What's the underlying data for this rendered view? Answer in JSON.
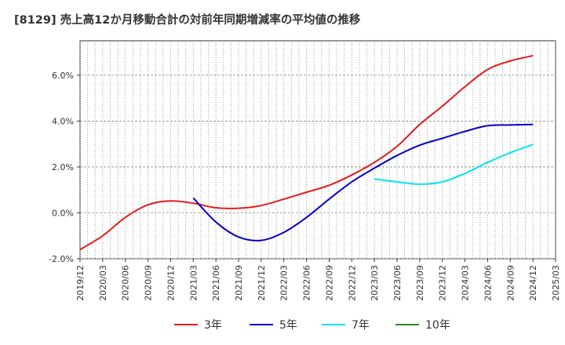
{
  "chart_data": {
    "type": "line",
    "title": "[8129]  売上高12か月移動合計の対前年同期増減率の平均値の推移",
    "xlabel": "",
    "ylabel": "",
    "x_tick_labels": [
      "2019/12",
      "2020/03",
      "2020/06",
      "2020/09",
      "2020/12",
      "2021/03",
      "2021/06",
      "2021/09",
      "2021/12",
      "2022/03",
      "2022/06",
      "2022/09",
      "2022/12",
      "2023/03",
      "2023/06",
      "2023/09",
      "2023/12",
      "2024/03",
      "2024/06",
      "2024/09",
      "2024/12",
      "2025/03"
    ],
    "y_ticks": [
      -2.0,
      0.0,
      2.0,
      4.0,
      6.0
    ],
    "y_tick_labels": [
      "-2.0%",
      "0.0%",
      "2.0%",
      "4.0%",
      "6.0%"
    ],
    "ylim": [
      -2.0,
      7.5
    ],
    "grid": true,
    "legend_position": "bottom",
    "series": [
      {
        "name": "3年",
        "color": "#e41a1c",
        "x": [
          "2019/12",
          "2020/03",
          "2020/06",
          "2020/09",
          "2020/12",
          "2021/03",
          "2021/06",
          "2021/09",
          "2021/12",
          "2022/03",
          "2022/06",
          "2022/09",
          "2022/12",
          "2023/03",
          "2023/06",
          "2023/09",
          "2023/12",
          "2024/03",
          "2024/06",
          "2024/09",
          "2024/12"
        ],
        "values": [
          -1.6,
          -1.0,
          -0.2,
          0.35,
          0.52,
          0.42,
          0.22,
          0.2,
          0.32,
          0.6,
          0.9,
          1.2,
          1.65,
          2.2,
          2.9,
          3.85,
          4.65,
          5.5,
          6.25,
          6.62,
          6.85
        ]
      },
      {
        "name": "5年",
        "color": "#0000cc",
        "x": [
          "2021/03",
          "2021/06",
          "2021/09",
          "2021/12",
          "2022/03",
          "2022/06",
          "2022/09",
          "2022/12",
          "2023/03",
          "2023/06",
          "2023/09",
          "2023/12",
          "2024/03",
          "2024/06",
          "2024/09",
          "2024/12"
        ],
        "values": [
          0.65,
          -0.4,
          -1.05,
          -1.2,
          -0.85,
          -0.2,
          0.6,
          1.35,
          1.95,
          2.5,
          2.95,
          3.25,
          3.55,
          3.8,
          3.83,
          3.85
        ]
      },
      {
        "name": "7年",
        "color": "#00e5ee",
        "x": [
          "2023/03",
          "2023/06",
          "2023/09",
          "2023/12",
          "2024/03",
          "2024/06",
          "2024/09",
          "2024/12"
        ],
        "values": [
          1.48,
          1.35,
          1.25,
          1.35,
          1.72,
          2.2,
          2.62,
          2.98
        ]
      },
      {
        "name": "10年",
        "color": "#228b22",
        "x": [],
        "values": []
      }
    ]
  }
}
